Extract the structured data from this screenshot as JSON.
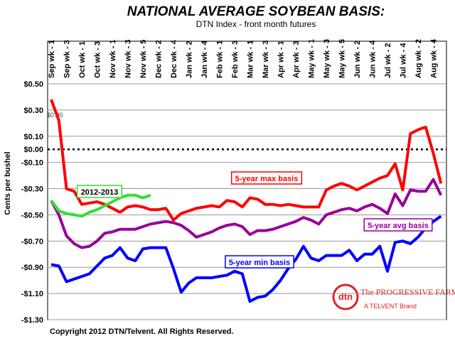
{
  "chart_data": {
    "type": "line",
    "title": "NATIONAL AVERAGE SOYBEAN BASIS:",
    "subtitle": "DTN Index - front month futures",
    "y_label": "Cents per bushel",
    "footer": "Copyright 2012 DTN/Telvent. All Rights Reserved.",
    "annotations": [
      "$0.00"
    ],
    "logo": {
      "mark": "dtn",
      "name": "The PROGRESSIVE FARMER",
      "tagline": "A TELVENT Brand"
    },
    "categories": [
      "Sep wk - 1",
      null,
      "Sep wk - 3",
      null,
      "Oct wk - 1",
      null,
      "Oct wk - 3",
      null,
      "Nov wk - 1",
      null,
      "Nov wk - 3",
      null,
      "Nov wk - 5",
      null,
      "Dec wk - 2",
      null,
      "Dec wk - 4",
      null,
      "Jan wk - 2",
      null,
      "Jan wk - 4",
      null,
      "Feb wk - 1",
      null,
      "Feb wk - 3",
      null,
      "Mar wk - 1",
      null,
      "Mar wk - 3",
      null,
      "Apr wk - 1",
      null,
      "Apr wk - 3",
      null,
      "May wk - 1",
      null,
      "May wk - 3",
      null,
      "May wk - 5",
      null,
      "Jun wk - 2",
      null,
      "Jun wk - 4",
      null,
      "Jul wk - 2",
      null,
      "Jul wk - 4",
      null,
      "Aug wk - 2",
      null,
      "Aug wk - 4",
      null
    ],
    "series": [
      {
        "name": "5-year max basis",
        "color": "#ff0000",
        "values": [
          0.38,
          0.22,
          -0.3,
          -0.32,
          -0.42,
          -0.41,
          -0.4,
          -0.42,
          -0.45,
          -0.48,
          -0.44,
          -0.43,
          -0.44,
          -0.46,
          -0.46,
          -0.45,
          -0.54,
          -0.49,
          -0.47,
          -0.45,
          -0.44,
          -0.43,
          -0.44,
          -0.39,
          -0.4,
          -0.44,
          -0.37,
          -0.38,
          -0.42,
          -0.42,
          -0.43,
          -0.42,
          -0.43,
          -0.44,
          -0.44,
          -0.44,
          -0.31,
          -0.28,
          -0.26,
          -0.28,
          -0.31,
          -0.28,
          -0.25,
          -0.22,
          -0.2,
          -0.11,
          -0.31,
          0.12,
          0.15,
          0.17,
          -0.03,
          -0.26
        ]
      },
      {
        "name": "5-year avg basis",
        "color": "#990099",
        "values": [
          -0.39,
          -0.5,
          -0.66,
          -0.72,
          -0.75,
          -0.74,
          -0.7,
          -0.64,
          -0.63,
          -0.61,
          -0.61,
          -0.61,
          -0.59,
          -0.57,
          -0.56,
          -0.55,
          -0.56,
          -0.58,
          -0.62,
          -0.67,
          -0.65,
          -0.63,
          -0.6,
          -0.58,
          -0.57,
          -0.59,
          -0.65,
          -0.62,
          -0.62,
          -0.61,
          -0.59,
          -0.57,
          -0.55,
          -0.52,
          -0.54,
          -0.57,
          -0.5,
          -0.48,
          -0.46,
          -0.45,
          -0.47,
          -0.44,
          -0.42,
          -0.45,
          -0.49,
          -0.34,
          -0.43,
          -0.31,
          -0.32,
          -0.32,
          -0.23,
          -0.35
        ]
      },
      {
        "name": "5-year min basis",
        "color": "#0000ff",
        "values": [
          -0.88,
          -0.89,
          -1.01,
          -0.99,
          -0.97,
          -0.95,
          -0.89,
          -0.83,
          -0.81,
          -0.75,
          -0.83,
          -0.85,
          -0.76,
          -0.75,
          -0.75,
          -0.75,
          -0.91,
          -1.09,
          -1.02,
          -0.98,
          -0.98,
          -0.98,
          -0.97,
          -0.96,
          -0.93,
          -0.95,
          -1.16,
          -1.13,
          -1.12,
          -1.07,
          -1.0,
          -0.91,
          -0.84,
          -0.74,
          -0.83,
          -0.85,
          -0.81,
          -0.81,
          -0.81,
          -0.77,
          -0.85,
          -0.8,
          -0.8,
          -0.74,
          -0.93,
          -0.71,
          -0.7,
          -0.72,
          -0.67,
          -0.6,
          -0.55,
          -0.51
        ]
      },
      {
        "name": "2012-2013",
        "color": "#33dd33",
        "values": [
          -0.39,
          -0.47,
          -0.49,
          -0.5,
          -0.51,
          -0.48,
          -0.46,
          -0.43,
          -0.4,
          -0.37,
          -0.35,
          -0.35,
          -0.37,
          -0.35,
          null,
          null,
          null,
          null,
          null,
          null,
          null,
          null,
          null,
          null,
          null,
          null,
          null,
          null,
          null,
          null,
          null,
          null,
          null,
          null,
          null,
          null,
          null,
          null,
          null,
          null,
          null,
          null,
          null,
          null,
          null,
          null,
          null,
          null,
          null,
          null,
          null,
          null
        ]
      }
    ],
    "ylim": [
      -1.3,
      0.5
    ],
    "yticks": [
      {
        "value": 0.5,
        "label": "$0.50"
      },
      {
        "value": 0.3,
        "label": "$0.30"
      },
      {
        "value": 0.1,
        "label": "$0.10"
      },
      {
        "value": 0,
        "label": "$0.00"
      },
      {
        "value": -0.1,
        "label": "-$0.10"
      },
      {
        "value": -0.3,
        "label": "-$0.30"
      },
      {
        "value": -0.5,
        "label": "-$0.50"
      },
      {
        "value": -0.7,
        "label": "-$0.70"
      },
      {
        "value": -0.9,
        "label": "-$0.90"
      },
      {
        "value": -1.1,
        "label": "-$1.10"
      },
      {
        "value": -1.3,
        "label": "-$1.30"
      }
    ],
    "grid": true,
    "zero_line": true
  }
}
